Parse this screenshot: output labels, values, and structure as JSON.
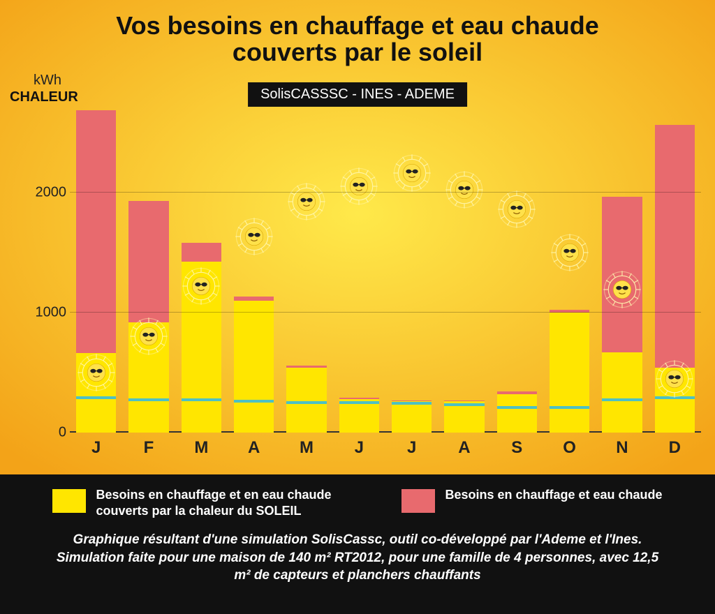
{
  "chart": {
    "title_line1": "Vos besoins en chauffage et eau chaude",
    "title_line2": "couverts par le soleil",
    "subtitle": "SolisCASSSC - INES - ADEME",
    "y_unit": "kWh",
    "y_label": "CHALEUR",
    "ymax": 2700,
    "yticks": [
      0,
      1000,
      2000
    ],
    "months": [
      "J",
      "F",
      "M",
      "A",
      "M",
      "J",
      "J",
      "A",
      "S",
      "O",
      "N",
      "D"
    ],
    "solar_covered": [
      660,
      920,
      1420,
      1100,
      540,
      280,
      260,
      260,
      320,
      1000,
      670,
      540
    ],
    "total_need": [
      2680,
      1930,
      1580,
      1130,
      560,
      290,
      270,
      270,
      340,
      1020,
      1960,
      2560
    ],
    "hot_water_line": [
      280,
      260,
      260,
      250,
      240,
      240,
      230,
      220,
      200,
      200,
      260,
      280
    ],
    "sun_curve": [
      500,
      800,
      1220,
      1630,
      1920,
      2050,
      2160,
      2020,
      1860,
      1500,
      1190,
      450
    ],
    "colors": {
      "bg_grad_top": "#ffe94a",
      "bg_grad_bottom": "#f3a318",
      "solar": "#ffe600",
      "need": "#e86a6e",
      "hw_line": "#4ec0c4",
      "sun_face": "#ffe14a",
      "sun_rays": "#fff7b0",
      "axis": "#333333",
      "legend_bg": "#111111",
      "grid": "rgba(0,0,0,0.25)"
    },
    "bar_width_ratio": 0.76,
    "title_fontsize": 36,
    "tick_fontsize": 20,
    "xlabel_fontsize": 24
  },
  "legend": {
    "solar_label": "Besoins en chauffage et en eau chaude couverts par la chaleur du SOLEIL",
    "need_label": "Besoins en chauffage et eau chaude"
  },
  "caption": "Graphique résultant d'une simulation SolisCassc, outil co-développé par l'Ademe et l'Ines. Simulation faite pour une maison de 140 m² RT2012, pour une famille de 4 personnes, avec 12,5 m² de capteurs et planchers chauffants"
}
